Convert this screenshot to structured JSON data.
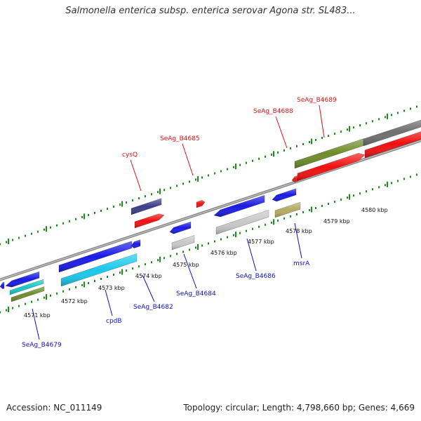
{
  "title": "Salmonella enterica subsp. enterica serovar Agona str. SL483...",
  "footer": {
    "accession": "Accession: NC_011149",
    "summary": "Topology: circular; Length: 4,798,660 bp; Genes: 4,669"
  },
  "ticks": [
    "4571 kbp",
    "4572 kbp",
    "4573 kbp",
    "4574 kbp",
    "4575 kbp",
    "4576 kbp",
    "4577 kbp",
    "4578 kbp",
    "4579 kbp",
    "4580 kbp"
  ],
  "top_labels": [
    "cysQ",
    "SeAg_B4685",
    "SeAg_B4688",
    "SeAg_B4689"
  ],
  "bottom_labels": [
    "SeAg_B4679",
    "cpdB",
    "SeAg_B4682",
    "SeAg_B4684",
    "SeAg_B4686",
    "msrA"
  ],
  "colors": {
    "forward_label": "#e01010",
    "reverse_label": "#1010c8",
    "blue": "#1a1ae6",
    "navy": "#3c3c8c",
    "red": "#f01010",
    "cyan": "#19c8ec",
    "olive": "#6e8c28",
    "tan": "#b4aa64",
    "silver": "#c8c8c8",
    "gray": "#6e6e6e",
    "teal": "#19c8c8",
    "tick": "#1a8c1a"
  }
}
